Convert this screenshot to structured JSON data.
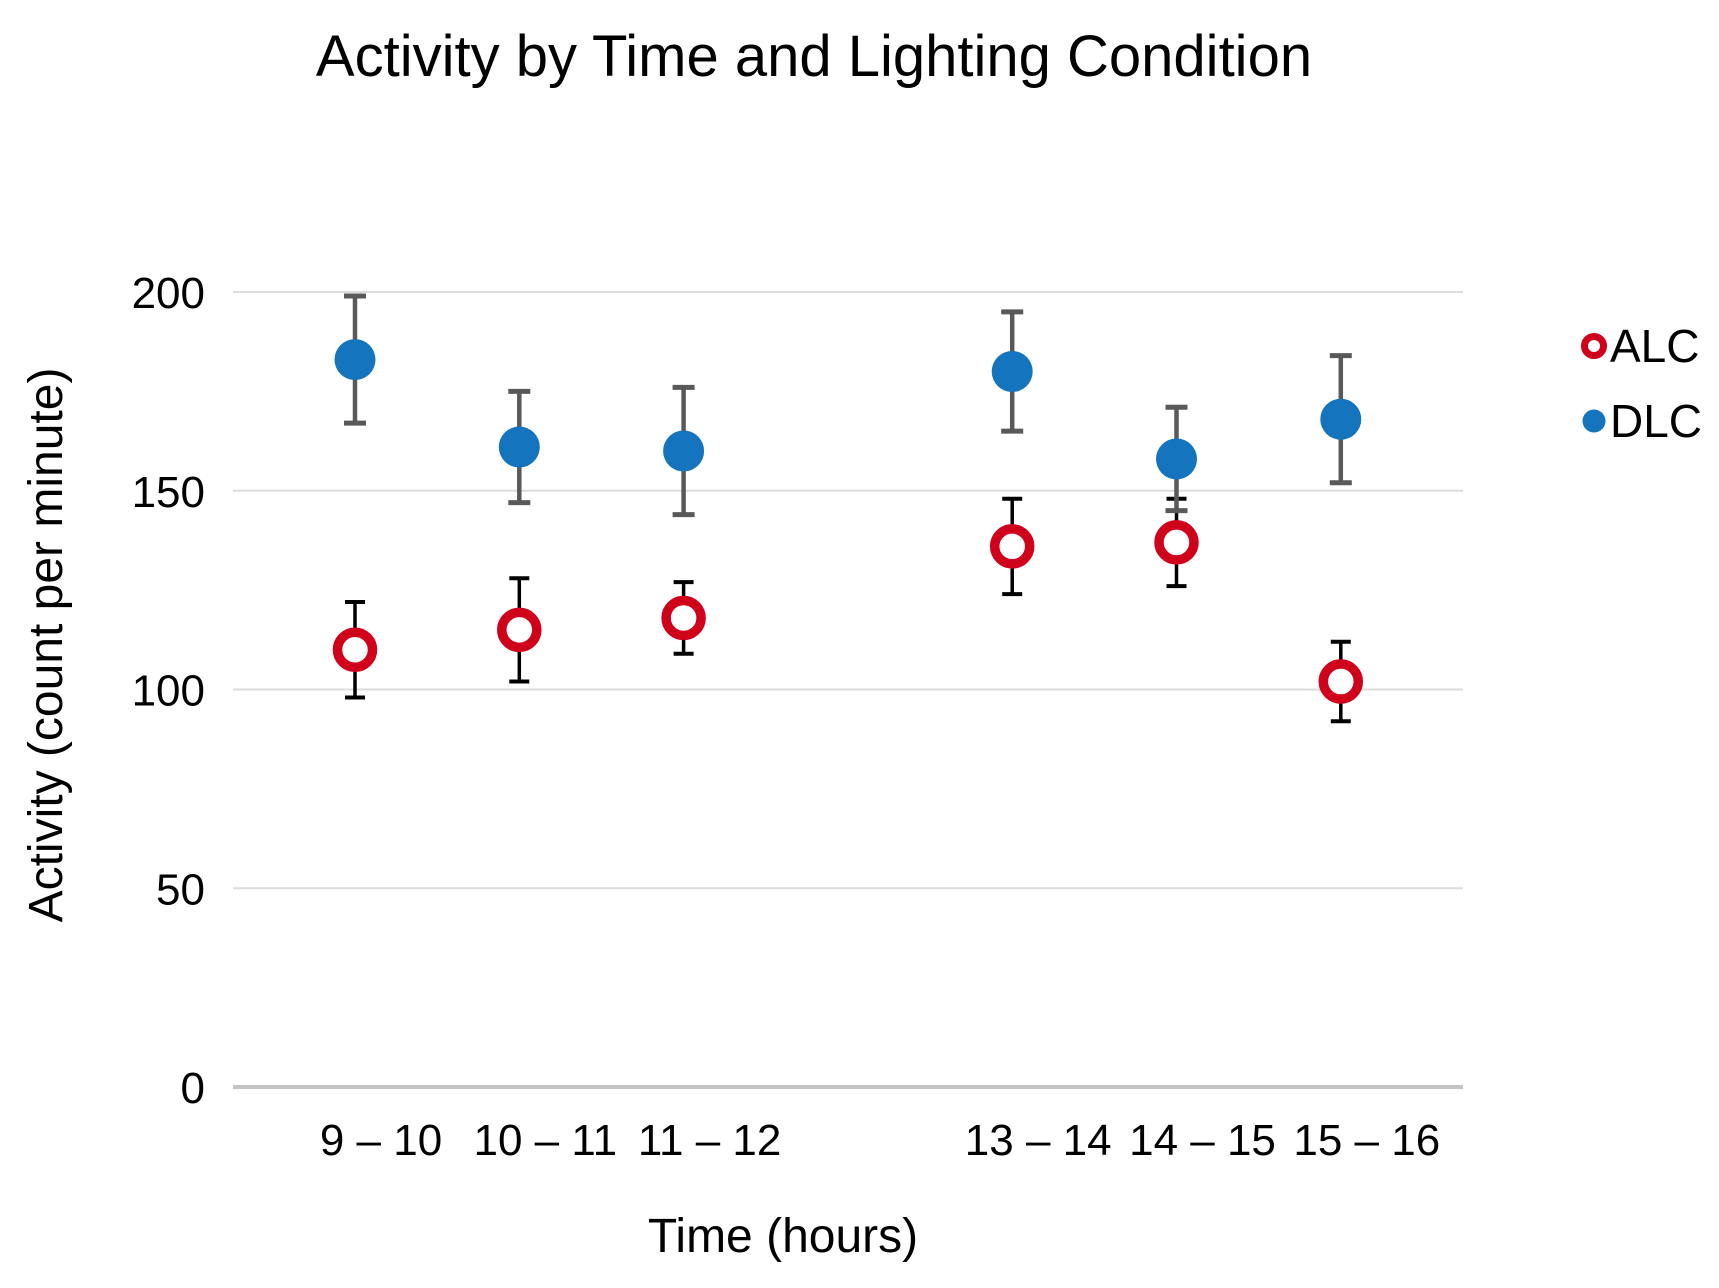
{
  "chart_data": {
    "type": "scatter",
    "title": "Activity by Time and Lighting Condition",
    "xlabel": "Time (hours)",
    "ylabel": "Activity (count per minute)",
    "categories": [
      "9 – 10",
      "10 – 11",
      "11 – 12",
      "13 – 14",
      "14 – 15",
      "15 – 16"
    ],
    "x_slots": [
      0,
      1,
      2,
      4,
      5,
      6
    ],
    "y_ticks": [
      0,
      50,
      100,
      150,
      200
    ],
    "ylim": [
      0,
      200
    ],
    "grid": "horizontal-only",
    "legend_position": "right",
    "series": [
      {
        "name": "ALC",
        "marker": "open-circle",
        "color": "#D0021B",
        "error_bar_color": "#000000",
        "values": [
          110,
          115,
          118,
          136,
          137,
          102
        ],
        "errors": [
          12,
          13,
          9,
          12,
          11,
          10
        ]
      },
      {
        "name": "DLC",
        "marker": "filled-circle",
        "color": "#1474BE",
        "error_bar_color": "#595959",
        "values": [
          183,
          161,
          160,
          180,
          158,
          168
        ],
        "errors": [
          16,
          14,
          16,
          15,
          13,
          16
        ]
      }
    ]
  },
  "colors": {
    "background": "#ffffff",
    "gridline": "#DCDCDC",
    "baseline": "#C4C4C4",
    "text": "#000000",
    "alc_red": "#D0021B",
    "dlc_blue": "#1474BE",
    "dlc_error_gray": "#595959",
    "alc_error_black": "#000000"
  }
}
